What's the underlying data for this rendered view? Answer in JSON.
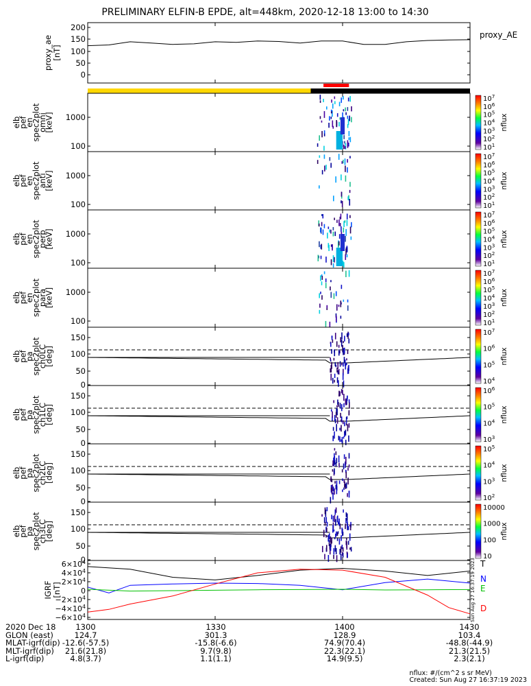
{
  "title": "PRELIMINARY ELFIN-B EPDE, alt=448km, 2020-12-18 13:00 to 14:30",
  "colors": {
    "yellow_bar": "#ffd700",
    "black_bar": "#000000",
    "red_marker": "#ff0000",
    "N_color": "#0000ff",
    "E_color": "#00c000",
    "D_color": "#ff0000",
    "T_color": "#000000"
  },
  "panels": [
    {
      "id": "proxy_ae",
      "ylabel": [
        "proxy_ae",
        "[nT]"
      ],
      "right_label": "proxy_AE",
      "yticks": [
        "200",
        "150",
        "100",
        "50",
        "0"
      ]
    },
    {
      "id": "omni",
      "ylabel": [
        "elb",
        "pef",
        "en",
        "spec2plot",
        "omni",
        "[keV]"
      ],
      "yticks": [
        "1000",
        "100"
      ],
      "cbar_label": "nflux",
      "cbar_ticks": [
        "10^7",
        "10^6",
        "10^5",
        "10^4",
        "10^3",
        "10^2",
        "10^1"
      ]
    },
    {
      "id": "anti",
      "ylabel": [
        "elb",
        "pef",
        "en",
        "spec2plot",
        "anti",
        "[keV]"
      ],
      "yticks": [
        "1000",
        "100"
      ],
      "cbar_label": "nflux",
      "cbar_ticks": [
        "10^7",
        "10^6",
        "10^5",
        "10^4",
        "10^3",
        "10^2",
        "10^1"
      ]
    },
    {
      "id": "perp",
      "ylabel": [
        "elb",
        "pef",
        "en",
        "spec2plot",
        "perp",
        "[keV]"
      ],
      "yticks": [
        "1000",
        "100"
      ],
      "cbar_label": "nflux",
      "cbar_ticks": [
        "10^7",
        "10^6",
        "10^5",
        "10^4",
        "10^3",
        "10^2",
        "10^1"
      ]
    },
    {
      "id": "para",
      "ylabel": [
        "elb",
        "pef",
        "en",
        "spec2plot",
        "para",
        "[keV]"
      ],
      "yticks": [
        "1000",
        "100"
      ],
      "cbar_label": "nflux",
      "cbar_ticks": [
        "10^7",
        "10^6",
        "10^5",
        "10^4",
        "10^3",
        "10^2",
        "10^1"
      ]
    },
    {
      "id": "ch0LC",
      "ylabel": [
        "elb",
        "pef",
        "pa",
        "spec2plot",
        "ch0LC",
        "[deg]"
      ],
      "yticks": [
        "150",
        "100",
        "50",
        "0"
      ],
      "cbar_label": "nflux",
      "cbar_ticks": [
        "10^7",
        "10^6",
        "10^5",
        "10^4"
      ]
    },
    {
      "id": "ch1LC",
      "ylabel": [
        "elb",
        "pef",
        "pa",
        "spec2plot",
        "ch1LC",
        "[deg]"
      ],
      "yticks": [
        "150",
        "100",
        "50",
        "0"
      ],
      "cbar_label": "nflux",
      "cbar_ticks": [
        "10^6",
        "10^5",
        "10^4",
        "10^3"
      ]
    },
    {
      "id": "ch2LC",
      "ylabel": [
        "elb",
        "pef",
        "pa",
        "spec2plot",
        "ch2LC",
        "[deg]"
      ],
      "yticks": [
        "150",
        "100",
        "50",
        "0"
      ],
      "cbar_label": "nflux",
      "cbar_ticks": [
        "10^5",
        "10^4",
        "10^3",
        "10^2"
      ]
    },
    {
      "id": "ch3LC",
      "ylabel": [
        "elb",
        "pef",
        "pa",
        "spec2plot",
        "ch3LC",
        "[deg]"
      ],
      "yticks": [
        "150",
        "100",
        "50",
        "0"
      ],
      "cbar_label": "nflux",
      "cbar_ticks": [
        "10000",
        "1000",
        "100",
        "10"
      ]
    },
    {
      "id": "igrf",
      "ylabel": [
        "IGRF",
        "[nT]"
      ],
      "yticks": [
        "6×10^4",
        "4×10^4",
        "2×10^4",
        "0",
        "−2×10^4",
        "−4×10^4",
        "−6×10^4"
      ],
      "legend": [
        "T",
        "N",
        "E",
        "D"
      ]
    }
  ],
  "vertical_stamp": "Sun Aug 27 16:37:19 2023",
  "footer": {
    "labels": [
      "2020 Dec 18",
      "GLON (east)",
      "MLAT-igrf(dip)",
      "MLT-igrf(dip)",
      "L-igrf(dip)"
    ],
    "columns": [
      {
        "tick": "1300",
        "values": [
          "124.7",
          "-12.6(-57.5)",
          "21.6(21.8)",
          "4.8(3.7)"
        ]
      },
      {
        "tick": "1330",
        "values": [
          "301.3",
          "-15.8(-6.6)",
          "9.7(9.8)",
          "1.1(1.1)"
        ]
      },
      {
        "tick": "1400",
        "values": [
          "128.9",
          "74.9(70.4)",
          "22.3(22.1)",
          "14.9(9.5)"
        ]
      },
      {
        "tick": "1430",
        "values": [
          "103.4",
          "-48.8(-44.9)",
          "21.3(21.5)",
          "2.3(2.1)"
        ]
      }
    ],
    "note1": "nflux: #/(cm^2 s sr MeV)",
    "note2": "Created: Sun Aug 27 16:37:19 2023"
  },
  "chart_data": {
    "type": "line",
    "time_range": [
      "2020-12-18 13:00",
      "2020-12-18 14:30"
    ],
    "xticks": [
      "1300",
      "1330",
      "1400",
      "1430"
    ],
    "series": [
      {
        "name": "proxy_AE",
        "panel": "proxy_ae",
        "x": [
          0,
          5,
          10,
          15,
          20,
          25,
          30,
          35,
          40,
          45,
          50,
          55,
          60,
          65,
          70,
          75,
          80,
          85,
          90
        ],
        "values": [
          130,
          133,
          145,
          140,
          135,
          137,
          145,
          143,
          148,
          146,
          140,
          148,
          148,
          135,
          135,
          145,
          150,
          152,
          153
        ]
      },
      {
        "name": "T",
        "panel": "igrf",
        "x": [
          0,
          10,
          20,
          30,
          40,
          50,
          60,
          70,
          80,
          90
        ],
        "values": [
          54000,
          48000,
          30000,
          24000,
          34000,
          46000,
          50000,
          44000,
          34000,
          44000
        ]
      },
      {
        "name": "N",
        "panel": "igrf",
        "x": [
          0,
          5,
          10,
          20,
          30,
          40,
          50,
          60,
          70,
          80,
          90
        ],
        "values": [
          8000,
          -5000,
          12000,
          15000,
          17000,
          16000,
          12000,
          2000,
          18000,
          26000,
          17000
        ]
      },
      {
        "name": "E",
        "panel": "igrf",
        "x": [
          0,
          10,
          20,
          30,
          40,
          50,
          60,
          70,
          80,
          90
        ],
        "values": [
          3000,
          -1000,
          0,
          1000,
          2000,
          2500,
          3000,
          1500,
          2000,
          2500
        ]
      },
      {
        "name": "D",
        "panel": "igrf",
        "x": [
          0,
          5,
          10,
          20,
          30,
          40,
          50,
          60,
          70,
          80,
          85,
          90
        ],
        "values": [
          -48000,
          -42000,
          -30000,
          -12000,
          15000,
          40000,
          48000,
          46000,
          30000,
          -10000,
          -38000,
          -52000
        ]
      }
    ]
  }
}
